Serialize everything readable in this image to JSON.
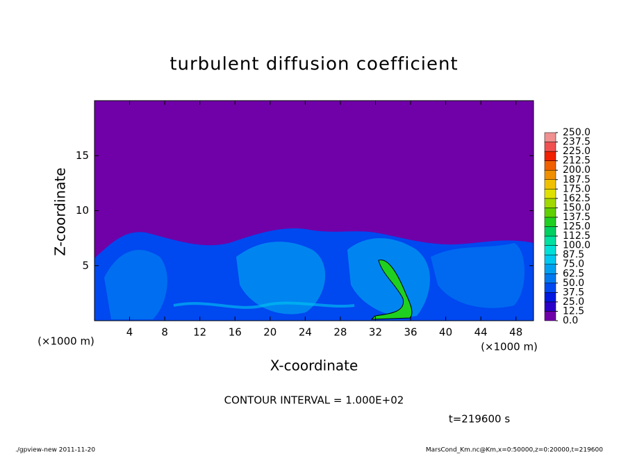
{
  "chart_data": {
    "type": "contour",
    "title": "turbulent diffusion coefficient",
    "x_label": "X-coordinate",
    "y_label": "Z-coordinate",
    "x_unit": "(×1000 m)",
    "y_unit": "(×1000 m)",
    "xlim": [
      0,
      50
    ],
    "ylim": [
      0,
      20
    ],
    "xticks": [
      4,
      8,
      12,
      16,
      20,
      24,
      28,
      32,
      36,
      40,
      44,
      48
    ],
    "yticks": [
      5,
      10,
      15
    ],
    "colorbar": {
      "levels": [
        {
          "value": 0,
          "label": "0.0"
        },
        {
          "value": 12.5,
          "label": "12.5"
        },
        {
          "value": 25,
          "label": "25.0"
        },
        {
          "value": 37.5,
          "label": "37.5"
        },
        {
          "value": 50,
          "label": "50.0"
        },
        {
          "value": 62.5,
          "label": "62.5"
        },
        {
          "value": 75,
          "label": "75.0"
        },
        {
          "value": 87.5,
          "label": "87.5"
        },
        {
          "value": 100,
          "label": "100.0"
        },
        {
          "value": 112.5,
          "label": "112.5"
        },
        {
          "value": 125,
          "label": "125.0"
        },
        {
          "value": 137.5,
          "label": "137.5"
        },
        {
          "value": 150,
          "label": "150.0"
        },
        {
          "value": 162.5,
          "label": "162.5"
        },
        {
          "value": 175,
          "label": "175.0"
        },
        {
          "value": 187.5,
          "label": "187.5"
        },
        {
          "value": 200,
          "label": "200.0"
        },
        {
          "value": 212.5,
          "label": "212.5"
        },
        {
          "value": 225,
          "label": "225.0"
        },
        {
          "value": 237.5,
          "label": "237.5"
        },
        {
          "value": 250,
          "label": "250.0"
        }
      ],
      "colors": [
        "#7000a8",
        "#2a00c8",
        "#0018e0",
        "#0048f0",
        "#0078f0",
        "#00a0f0",
        "#00c8f0",
        "#00e0d8",
        "#00e0a0",
        "#00d060",
        "#20d020",
        "#60d000",
        "#a0d800",
        "#e0e000",
        "#f0c000",
        "#f09000",
        "#f06000",
        "#f02000",
        "#f05050",
        "#f09090"
      ]
    },
    "contour_interval": "CONTOUR INTERVAL = 1.000E+02",
    "time_label": "t=219600 s",
    "footer_left": "./gpview-new  2011-11-20",
    "footer_right": "MarsCond_Km.nc@Km,x=0:50000,z=0:20000,t=219600"
  }
}
